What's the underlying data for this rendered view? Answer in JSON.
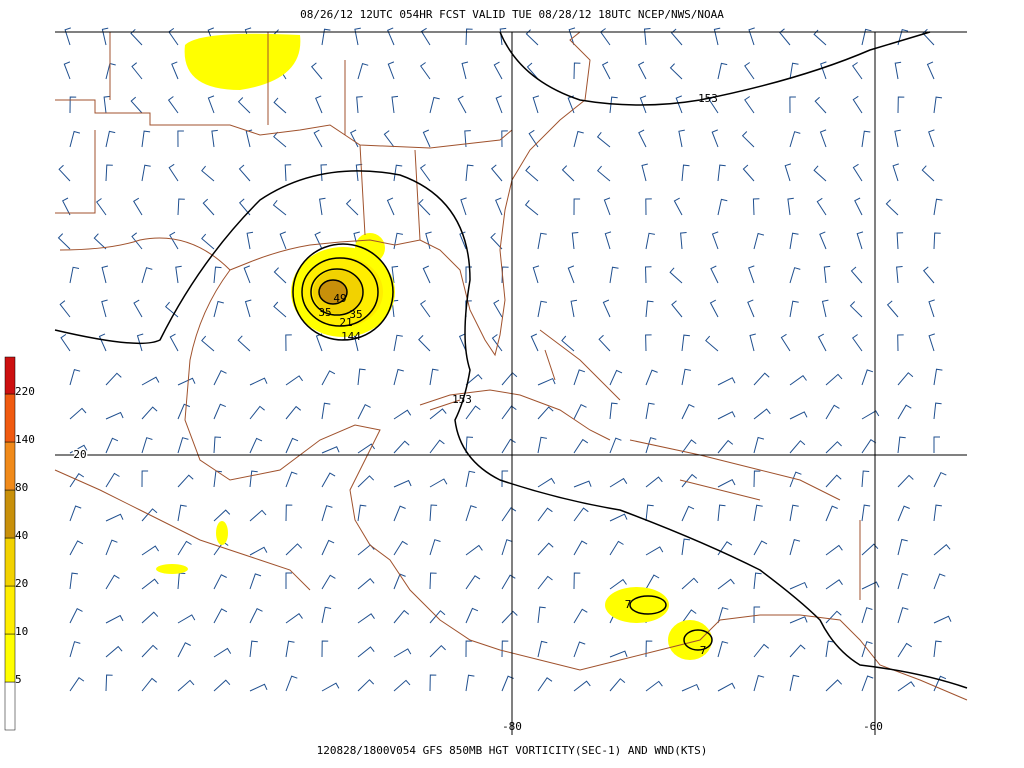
{
  "header": {
    "title": "08/26/12 12UTC  054HR  FCST VALID TUE 08/28/12 18UTC  NCEP/NWS/NOAA"
  },
  "footer": {
    "caption": "120828/1800V054 GFS 850MB HGT VORTICITY(SEC-1) AND WND(KTS)"
  },
  "colorbar": {
    "levels": [
      {
        "label": "5",
        "color": "#ffff00"
      },
      {
        "label": "10",
        "color": "#ffee00"
      },
      {
        "label": "20",
        "color": "#f2d200"
      },
      {
        "label": "40",
        "color": "#c8900a"
      },
      {
        "label": "80",
        "color": "#f08a1a"
      },
      {
        "label": "140",
        "color": "#f05a10"
      },
      {
        "label": "220",
        "color": "#cc1010"
      }
    ]
  },
  "grid": {
    "lat_labels": [
      "20"
    ],
    "lon_labels": [
      "-80",
      "-60"
    ]
  },
  "contour_labels": [
    "153",
    "153",
    "144",
    "49",
    "35",
    "35",
    "21",
    "7",
    "7"
  ]
}
